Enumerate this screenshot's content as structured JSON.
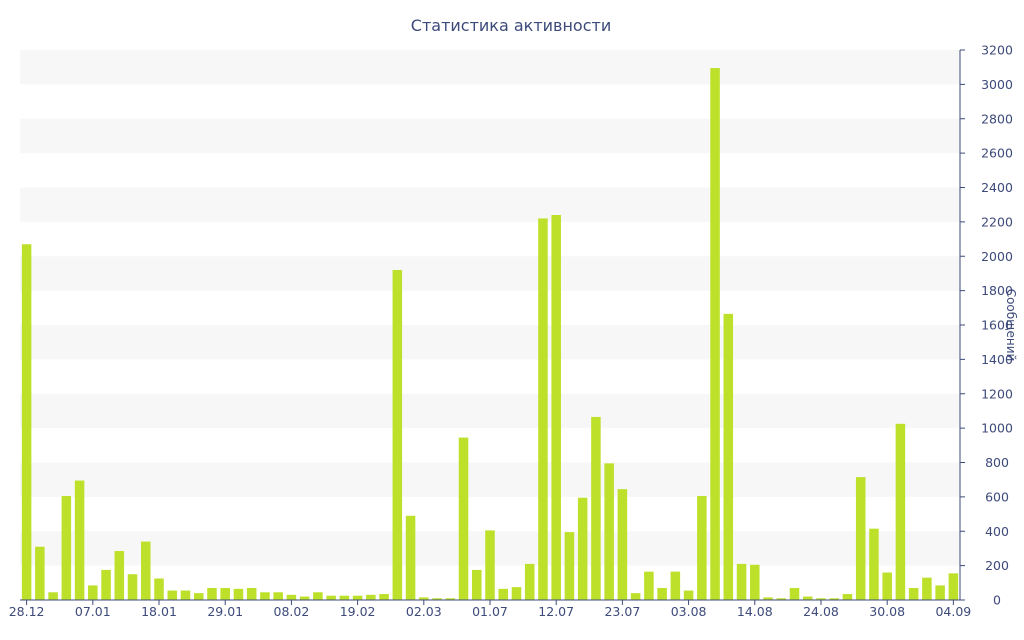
{
  "chart_data": {
    "type": "bar",
    "title": "Статистика активности",
    "xlabel": "",
    "ylabel": "Сообщений",
    "ylim": [
      0,
      3200
    ],
    "y_ticks": [
      0,
      200,
      400,
      600,
      800,
      1000,
      1200,
      1400,
      1600,
      1800,
      2000,
      2200,
      2400,
      2600,
      2800,
      3000,
      3200
    ],
    "x_tick_labels": [
      {
        "index": 0,
        "label": "28.12"
      },
      {
        "index": 5,
        "label": "07.01"
      },
      {
        "index": 10,
        "label": "18.01"
      },
      {
        "index": 15,
        "label": "29.01"
      },
      {
        "index": 20,
        "label": "08.02"
      },
      {
        "index": 25,
        "label": "19.02"
      },
      {
        "index": 30,
        "label": "02.03"
      },
      {
        "index": 35,
        "label": "01.07"
      },
      {
        "index": 40,
        "label": "12.07"
      },
      {
        "index": 45,
        "label": "23.07"
      },
      {
        "index": 50,
        "label": "03.08"
      },
      {
        "index": 55,
        "label": "14.08"
      },
      {
        "index": 60,
        "label": "24.08"
      },
      {
        "index": 65,
        "label": "30.08"
      },
      {
        "index": 70,
        "label": "04.09"
      }
    ],
    "values": [
      2070,
      310,
      45,
      605,
      695,
      85,
      175,
      285,
      150,
      340,
      125,
      55,
      55,
      40,
      70,
      70,
      65,
      70,
      45,
      45,
      30,
      20,
      45,
      25,
      25,
      25,
      30,
      35,
      1920,
      490,
      15,
      10,
      10,
      945,
      175,
      405,
      65,
      75,
      210,
      2220,
      2240,
      395,
      595,
      1065,
      795,
      645,
      40,
      165,
      70,
      165,
      55,
      605,
      3095,
      1665,
      210,
      205,
      15,
      10,
      70,
      20,
      10,
      10,
      35,
      715,
      415,
      160,
      1025,
      70,
      130,
      85,
      155
    ],
    "bar_color": "#bde12b",
    "band_color": "#f7f7f7",
    "text_color": "#3d4a7a",
    "grid": "alternating horizontal bands",
    "y_axis_position": "right"
  }
}
